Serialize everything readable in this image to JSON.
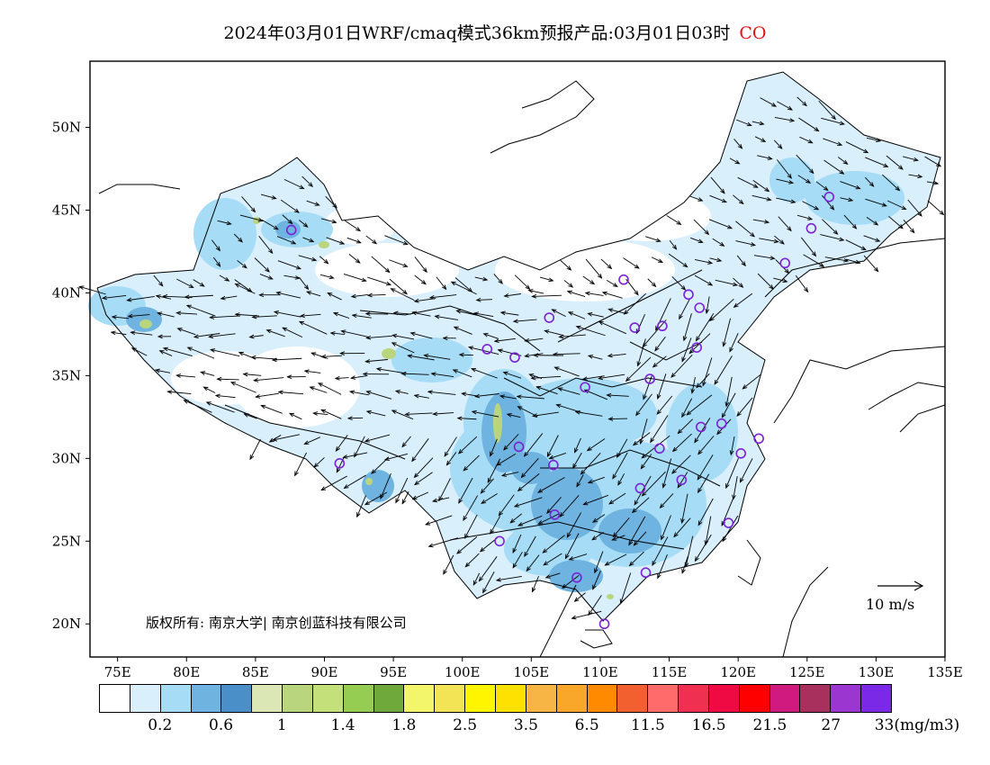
{
  "header": {
    "title_main": "2024年03月01日WRF/cmaq模式36km预报产品:03月01日03时",
    "title_species": "CO",
    "species_color": "#e0141c"
  },
  "map": {
    "lon_labels": [
      "75E",
      "80E",
      "85E",
      "90E",
      "95E",
      "100E",
      "105E",
      "110E",
      "115E",
      "120E",
      "125E",
      "130E",
      "135E"
    ],
    "lat_labels": [
      "50N",
      "45N",
      "40N",
      "35N",
      "30N",
      "25N",
      "20N"
    ],
    "lon_range": [
      73,
      135
    ],
    "lat_range": [
      18,
      54
    ],
    "copyright": "版权所有: 南京大学| 南京创蓝科技有限公司",
    "wind_reference": "10 m/s",
    "station_marker_color": "#7b22d6"
  },
  "legend": {
    "colors": [
      "#ffffff",
      "#d9effc",
      "#a6dcf5",
      "#6fb3e0",
      "#4a8fc7",
      "#dbe8b5",
      "#b9d67f",
      "#c3e07a",
      "#95cc52",
      "#6fa83b",
      "#f3f56b",
      "#f2e455",
      "#fff500",
      "#ffe100",
      "#f7b546",
      "#f9a72a",
      "#ff8a00",
      "#f26030",
      "#ff6b6b",
      "#f03050",
      "#f00a44",
      "#ff0000",
      "#d01a7f",
      "#a8305c",
      "#9b36d0",
      "#7a2ae6"
    ],
    "labels": [
      "0.2",
      "0.6",
      "1",
      "1.4",
      "1.8",
      "2.5",
      "3.5",
      "6.5",
      "11.5",
      "16.5",
      "21.5",
      "27",
      "33(mg/m3)"
    ]
  }
}
